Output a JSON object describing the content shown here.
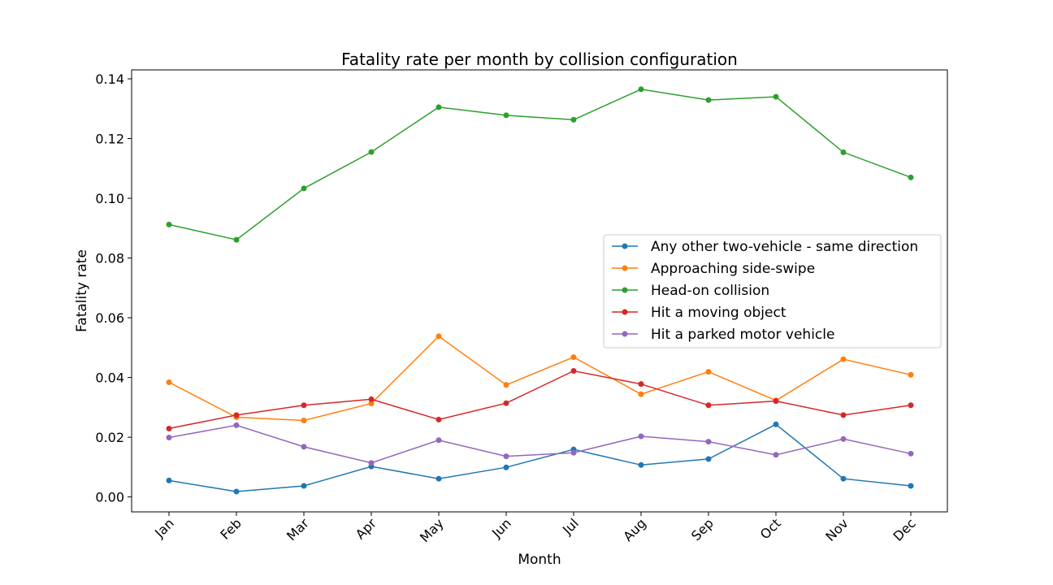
{
  "chart_data": {
    "type": "line",
    "title": "Fatality rate per month by collision configuration",
    "xlabel": "Month",
    "ylabel": "Fatality rate",
    "categories": [
      "Jan",
      "Feb",
      "Mar",
      "Apr",
      "May",
      "Jun",
      "Jul",
      "Aug",
      "Sep",
      "Oct",
      "Nov",
      "Dec"
    ],
    "ylim": [
      -0.005,
      0.143
    ],
    "yticks": [
      0.0,
      0.02,
      0.04,
      0.06,
      0.08,
      0.1,
      0.12,
      0.14
    ],
    "ytick_labels": [
      "0.00",
      "0.02",
      "0.04",
      "0.06",
      "0.08",
      "0.10",
      "0.12",
      "0.14"
    ],
    "grid": false,
    "legend_position": "center-right",
    "series": [
      {
        "name": "Any other two-vehicle - same direction",
        "color": "#1f77b4",
        "values": [
          0.0055,
          0.0018,
          0.0037,
          0.0102,
          0.0061,
          0.0099,
          0.0159,
          0.0107,
          0.0127,
          0.0243,
          0.0061,
          0.0037
        ]
      },
      {
        "name": "Approaching side-swipe",
        "color": "#ff7f0e",
        "values": [
          0.0384,
          0.0267,
          0.0256,
          0.0313,
          0.0538,
          0.0375,
          0.0468,
          0.0344,
          0.0419,
          0.0323,
          0.0461,
          0.0409
        ]
      },
      {
        "name": "Head-on collision",
        "color": "#2ca02c",
        "values": [
          0.0912,
          0.0861,
          0.1033,
          0.1155,
          0.1305,
          0.1278,
          0.1263,
          0.1365,
          0.1329,
          0.134,
          0.1154,
          0.107
        ]
      },
      {
        "name": "Hit a moving object",
        "color": "#d62728",
        "values": [
          0.0229,
          0.0274,
          0.0307,
          0.0327,
          0.0259,
          0.0314,
          0.0422,
          0.0378,
          0.0307,
          0.0321,
          0.0274,
          0.0307
        ]
      },
      {
        "name": "Hit a parked motor vehicle",
        "color": "#9467bd",
        "values": [
          0.0199,
          0.024,
          0.0168,
          0.0114,
          0.019,
          0.0136,
          0.0148,
          0.0203,
          0.0185,
          0.0141,
          0.0194,
          0.0145
        ]
      }
    ]
  }
}
